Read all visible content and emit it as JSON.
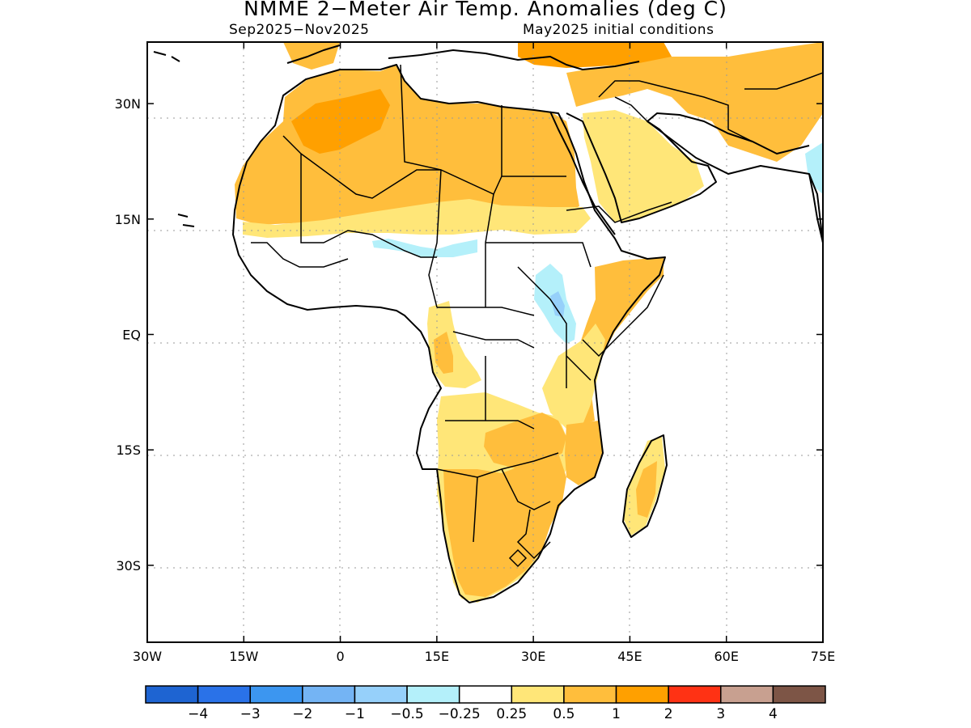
{
  "title": "NMME 2−Meter Air Temp. Anomalies (deg C)",
  "season": "Sep2025−Nov2025",
  "initial_conditions": "May2025 initial conditions",
  "chart_data": {
    "type": "heatmap",
    "map_extent": {
      "lon": [
        -30,
        75
      ],
      "lat": [
        -40,
        38
      ]
    },
    "x_ticks": [
      "30W",
      "15W",
      "0",
      "15E",
      "30E",
      "45E",
      "60E",
      "75E"
    ],
    "x_tick_values": [
      -30,
      -15,
      0,
      15,
      30,
      45,
      60,
      75
    ],
    "y_ticks": [
      "30N",
      "15N",
      "EQ",
      "15S",
      "30S"
    ],
    "y_tick_values": [
      30,
      15,
      0,
      -15,
      -30
    ],
    "grid": true,
    "colorbar": {
      "labels": [
        "−4",
        "−3",
        "−2",
        "−1",
        "−0.5",
        "−0.25",
        "0.25",
        "0.5",
        "1",
        "2",
        "3",
        "4"
      ],
      "colors": [
        "#1e64d2",
        "#2a72e8",
        "#3c96f0",
        "#74b4f4",
        "#96d0fa",
        "#b4f0fa",
        "#ffffff",
        "#ffe678",
        "#ffbe3c",
        "#ffa000",
        "#ff3214",
        "#c8a090",
        "#7d5546"
      ]
    }
  }
}
